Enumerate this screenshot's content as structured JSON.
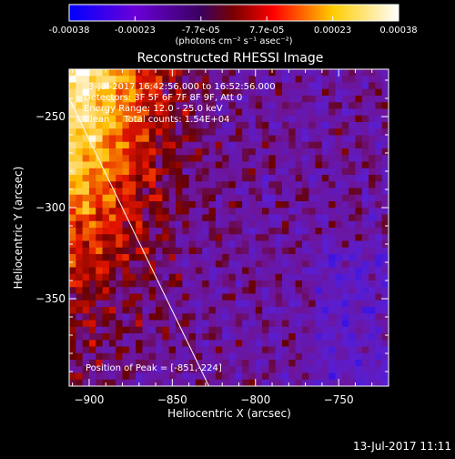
{
  "colorbar": {
    "ticks": [
      "-0.00038",
      "-0.00023",
      "-7.7e-05",
      "7.7e-05",
      "0.00023",
      "0.00038"
    ],
    "units": "(photons cm⁻² s⁻¹ asec⁻²)"
  },
  "title": "Reconstructed RHESSI Image",
  "annotations": {
    "time": "3-Jul-2017 16:42:56.000 to 16:52:56.000",
    "detectors": "Detectors: 3F 5F 6F 7F 8F 9F, Att 0",
    "energy": "Energy Range: 12.0 - 25.0 keV",
    "clean": "Clean     Total counts: 1.54E+04",
    "peak": "Position of Peak = [-851,-224]"
  },
  "footer": {
    "date": "13-Jul-2017 11:11"
  },
  "chart_data": {
    "type": "heatmap",
    "title": "Reconstructed RHESSI Image",
    "xlabel": "Heliocentric X (arcsec)",
    "ylabel": "Heliocentric Y (arcsec)",
    "xlim": [
      -912,
      -720
    ],
    "ylim": [
      -398,
      -224
    ],
    "x_ticks": [
      -900,
      -850,
      -800,
      -750
    ],
    "y_ticks": [
      -350,
      -300,
      -250
    ],
    "x_tick_labels": [
      "−900",
      "−850",
      "−800",
      "−750"
    ],
    "y_tick_labels": [
      "−350",
      "−300",
      "−250"
    ],
    "color_range": [
      -0.00038,
      0.00038
    ],
    "colormap": [
      "#0000ff",
      "#6a00d9",
      "#b30000",
      "#ff0000",
      "#ffcc00",
      "#ffffff"
    ],
    "limb_line": {
      "x": [
        -912,
        -828
      ],
      "y": [
        -240,
        -398
      ]
    },
    "peak": [
      -851,
      -224
    ]
  }
}
